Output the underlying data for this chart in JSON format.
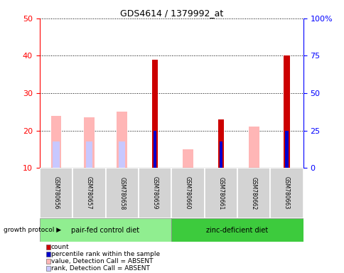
{
  "title": "GDS4614 / 1379992_at",
  "samples": [
    "GSM780656",
    "GSM780657",
    "GSM780658",
    "GSM780659",
    "GSM780660",
    "GSM780661",
    "GSM780662",
    "GSM780663"
  ],
  "count_values": [
    0,
    0,
    0,
    39,
    0,
    23,
    0,
    40
  ],
  "percentile_values": [
    0,
    0,
    0,
    20,
    0,
    17,
    0,
    20
  ],
  "value_absent": [
    24,
    23.5,
    25,
    0,
    15,
    0,
    21,
    0
  ],
  "rank_absent": [
    17,
    17,
    17,
    0,
    0,
    0,
    0,
    0
  ],
  "ylim_left": [
    10,
    50
  ],
  "ylim_right": [
    0,
    100
  ],
  "yticks_left": [
    10,
    20,
    30,
    40,
    50
  ],
  "yticks_right": [
    0,
    25,
    50,
    75,
    100
  ],
  "ytick_labels_right": [
    "0",
    "25",
    "50",
    "75",
    "100%"
  ],
  "groups": [
    {
      "label": "pair-fed control diet",
      "indices": [
        0,
        1,
        2,
        3
      ],
      "color": "#90ee90"
    },
    {
      "label": "zinc-deficient diet",
      "indices": [
        4,
        5,
        6,
        7
      ],
      "color": "#3dcb3d"
    }
  ],
  "group_label": "growth protocol",
  "count_color": "#cc0000",
  "percentile_color": "#0000cc",
  "value_absent_color": "#ffb6b6",
  "rank_absent_color": "#c8c8ff",
  "legend_items": [
    {
      "label": "count",
      "color": "#cc0000"
    },
    {
      "label": "percentile rank within the sample",
      "color": "#0000cc"
    },
    {
      "label": "value, Detection Call = ABSENT",
      "color": "#ffb6b6"
    },
    {
      "label": "rank, Detection Call = ABSENT",
      "color": "#c8c8ff"
    }
  ]
}
